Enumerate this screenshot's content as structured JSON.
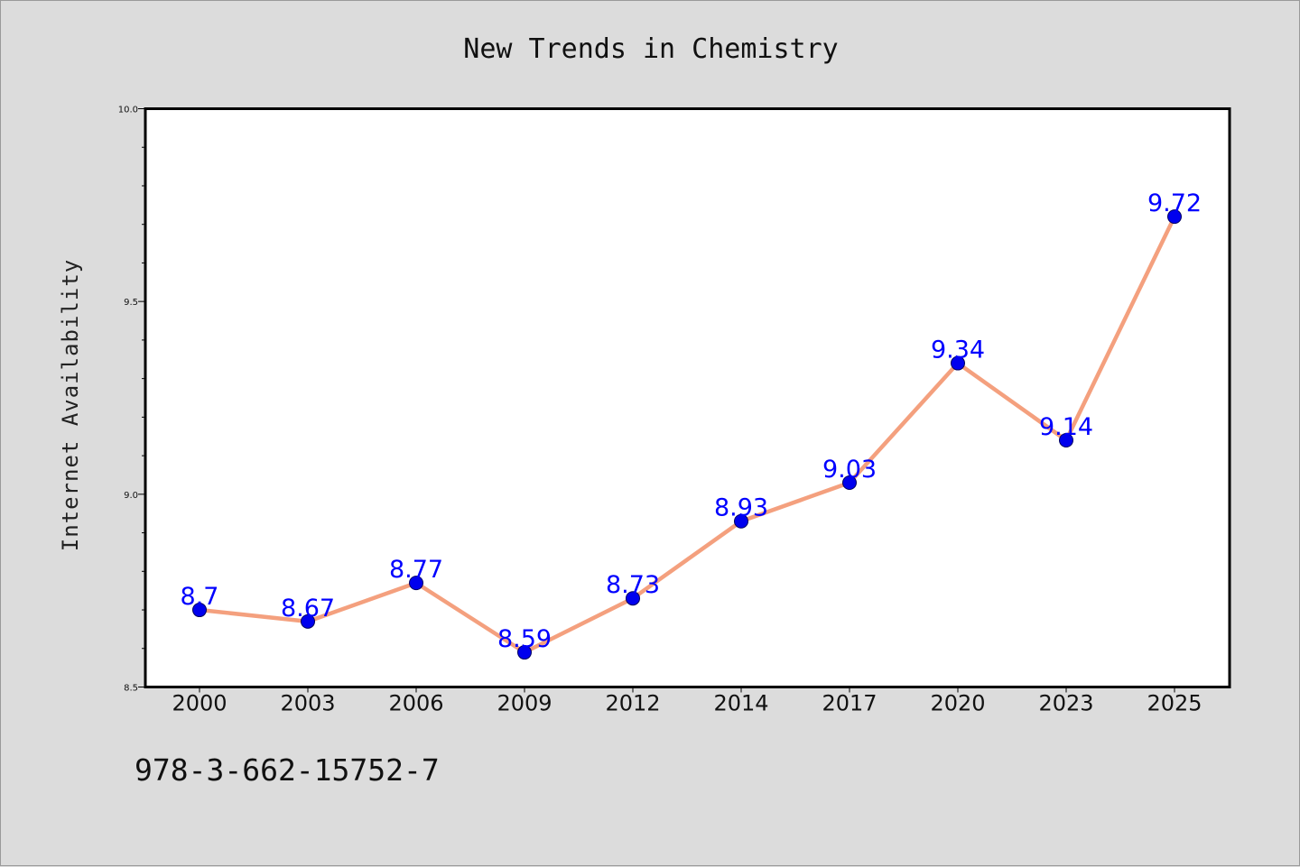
{
  "chart_data": {
    "type": "line",
    "title": "New Trends in Chemistry",
    "xlabel": "",
    "ylabel": "Internet Availability",
    "categories": [
      "2000",
      "2003",
      "2006",
      "2009",
      "2012",
      "2014",
      "2017",
      "2020",
      "2023",
      "2025"
    ],
    "series": [
      {
        "values": [
          8.7,
          8.67,
          8.77,
          8.59,
          8.73,
          8.93,
          9.03,
          9.34,
          9.14,
          9.72
        ]
      }
    ],
    "data_labels": [
      "8.7",
      "8.67",
      "8.77",
      "8.59",
      "8.73",
      "8.93",
      "9.03",
      "9.34",
      "9.14",
      "9.72"
    ],
    "ylim": [
      8.5,
      10.0
    ],
    "yticks": [
      "8.5",
      "9.0",
      "9.5",
      "10.0"
    ],
    "grid": false,
    "legend": "none",
    "colors": {
      "line": "#f4a07e",
      "marker": "#0000ee",
      "marker_edge": "#000060",
      "label": "#0000ff",
      "background": "#dcdcdc",
      "plot_area": "#ffffff"
    }
  },
  "footer": {
    "isbn": "978-3-662-15752-7"
  }
}
